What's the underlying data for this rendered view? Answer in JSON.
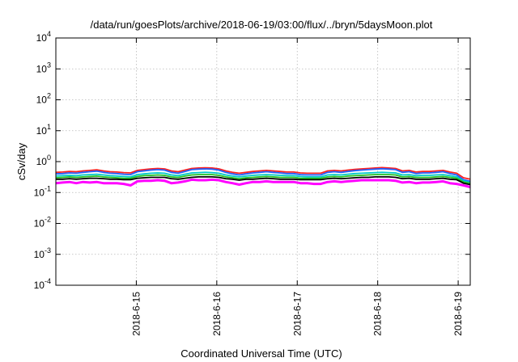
{
  "chart_data": {
    "type": "line",
    "title": "/data/run/goesPlots/archive/2018-06-19/03:00/flux/../bryn/5daysMoon.plot",
    "xlabel": "Coordinated Universal Time (UTC)",
    "ylabel": "cSv/day",
    "yscale": "log",
    "ylim": [
      0.0001,
      10000
    ],
    "xlim": [
      0,
      5.15
    ],
    "y_ticks": [
      {
        "value": 0.0001,
        "base": "10",
        "exp": "-4"
      },
      {
        "value": 0.001,
        "base": "10",
        "exp": "-3"
      },
      {
        "value": 0.01,
        "base": "10",
        "exp": "-2"
      },
      {
        "value": 0.1,
        "base": "10",
        "exp": "-1"
      },
      {
        "value": 1,
        "base": "10",
        "exp": "0"
      },
      {
        "value": 10,
        "base": "10",
        "exp": "1"
      },
      {
        "value": 100,
        "base": "10",
        "exp": "2"
      },
      {
        "value": 1000,
        "base": "10",
        "exp": "3"
      },
      {
        "value": 10000,
        "base": "10",
        "exp": "4"
      }
    ],
    "x_ticks": [
      {
        "value": 1,
        "label": "2018-6-15"
      },
      {
        "value": 2,
        "label": "2018-6-16"
      },
      {
        "value": 3,
        "label": "2018-6-17"
      },
      {
        "value": 4,
        "label": "2018-6-18"
      },
      {
        "value": 5,
        "label": "2018-6-19"
      }
    ],
    "grid": true,
    "series": [
      {
        "color": "#ff00ff",
        "values": [
          0.2,
          0.21,
          0.22,
          0.2,
          0.22,
          0.21,
          0.22,
          0.2,
          0.2,
          0.2,
          0.19,
          0.17,
          0.23,
          0.24,
          0.24,
          0.25,
          0.24,
          0.2,
          0.21,
          0.23,
          0.26,
          0.25,
          0.25,
          0.26,
          0.25,
          0.22,
          0.2,
          0.18,
          0.2,
          0.22,
          0.22,
          0.23,
          0.22,
          0.22,
          0.22,
          0.22,
          0.2,
          0.2,
          0.19,
          0.19,
          0.22,
          0.23,
          0.22,
          0.23,
          0.24,
          0.25,
          0.25,
          0.25,
          0.25,
          0.25,
          0.24,
          0.21,
          0.22,
          0.2,
          0.21,
          0.21,
          0.22,
          0.23,
          0.2,
          0.19,
          0.17,
          0.15
        ]
      },
      {
        "color": "#ff2020",
        "values": [
          0.45,
          0.46,
          0.48,
          0.47,
          0.5,
          0.52,
          0.54,
          0.5,
          0.47,
          0.46,
          0.44,
          0.43,
          0.52,
          0.55,
          0.58,
          0.6,
          0.58,
          0.5,
          0.47,
          0.53,
          0.6,
          0.62,
          0.63,
          0.62,
          0.58,
          0.5,
          0.45,
          0.42,
          0.45,
          0.48,
          0.5,
          0.52,
          0.5,
          0.48,
          0.46,
          0.46,
          0.43,
          0.42,
          0.42,
          0.42,
          0.5,
          0.52,
          0.5,
          0.53,
          0.56,
          0.58,
          0.6,
          0.62,
          0.64,
          0.62,
          0.6,
          0.5,
          0.52,
          0.46,
          0.48,
          0.48,
          0.5,
          0.52,
          0.46,
          0.42,
          0.3,
          0.27
        ]
      },
      {
        "color": "#1f5fff",
        "values": [
          0.4,
          0.41,
          0.43,
          0.42,
          0.45,
          0.47,
          0.49,
          0.45,
          0.42,
          0.41,
          0.39,
          0.38,
          0.47,
          0.5,
          0.53,
          0.55,
          0.53,
          0.45,
          0.42,
          0.48,
          0.55,
          0.57,
          0.58,
          0.57,
          0.53,
          0.45,
          0.4,
          0.37,
          0.4,
          0.43,
          0.45,
          0.47,
          0.45,
          0.43,
          0.41,
          0.41,
          0.38,
          0.37,
          0.37,
          0.37,
          0.45,
          0.47,
          0.45,
          0.48,
          0.51,
          0.53,
          0.55,
          0.57,
          0.59,
          0.57,
          0.55,
          0.45,
          0.47,
          0.41,
          0.43,
          0.43,
          0.45,
          0.47,
          0.41,
          0.37,
          0.26,
          0.23
        ]
      },
      {
        "color": "#00c8c8",
        "values": [
          0.34,
          0.35,
          0.36,
          0.35,
          0.37,
          0.38,
          0.39,
          0.37,
          0.35,
          0.34,
          0.33,
          0.32,
          0.38,
          0.4,
          0.42,
          0.43,
          0.42,
          0.37,
          0.35,
          0.39,
          0.43,
          0.44,
          0.45,
          0.44,
          0.42,
          0.37,
          0.34,
          0.32,
          0.34,
          0.36,
          0.37,
          0.38,
          0.37,
          0.36,
          0.35,
          0.35,
          0.33,
          0.32,
          0.32,
          0.32,
          0.37,
          0.38,
          0.37,
          0.39,
          0.41,
          0.42,
          0.43,
          0.44,
          0.45,
          0.44,
          0.43,
          0.37,
          0.38,
          0.35,
          0.36,
          0.36,
          0.37,
          0.38,
          0.35,
          0.32,
          0.24,
          0.21
        ]
      },
      {
        "color": "#20c020",
        "values": [
          0.3,
          0.31,
          0.32,
          0.31,
          0.32,
          0.33,
          0.34,
          0.32,
          0.31,
          0.3,
          0.29,
          0.29,
          0.33,
          0.35,
          0.36,
          0.37,
          0.36,
          0.32,
          0.31,
          0.34,
          0.37,
          0.38,
          0.38,
          0.38,
          0.36,
          0.32,
          0.3,
          0.28,
          0.3,
          0.31,
          0.32,
          0.33,
          0.32,
          0.31,
          0.31,
          0.31,
          0.29,
          0.29,
          0.29,
          0.29,
          0.32,
          0.33,
          0.32,
          0.34,
          0.35,
          0.36,
          0.37,
          0.38,
          0.38,
          0.38,
          0.37,
          0.32,
          0.33,
          0.31,
          0.31,
          0.31,
          0.32,
          0.33,
          0.31,
          0.29,
          0.22,
          0.2
        ]
      },
      {
        "color": "#000000",
        "values": [
          0.27,
          0.27,
          0.28,
          0.27,
          0.28,
          0.29,
          0.29,
          0.28,
          0.27,
          0.27,
          0.26,
          0.26,
          0.29,
          0.3,
          0.31,
          0.31,
          0.31,
          0.28,
          0.27,
          0.29,
          0.31,
          0.32,
          0.32,
          0.32,
          0.31,
          0.28,
          0.27,
          0.25,
          0.27,
          0.27,
          0.28,
          0.29,
          0.28,
          0.27,
          0.27,
          0.27,
          0.26,
          0.26,
          0.26,
          0.26,
          0.28,
          0.29,
          0.28,
          0.29,
          0.3,
          0.31,
          0.31,
          0.32,
          0.32,
          0.32,
          0.31,
          0.28,
          0.29,
          0.27,
          0.27,
          0.27,
          0.28,
          0.29,
          0.27,
          0.26,
          0.2,
          0.18
        ]
      }
    ]
  }
}
